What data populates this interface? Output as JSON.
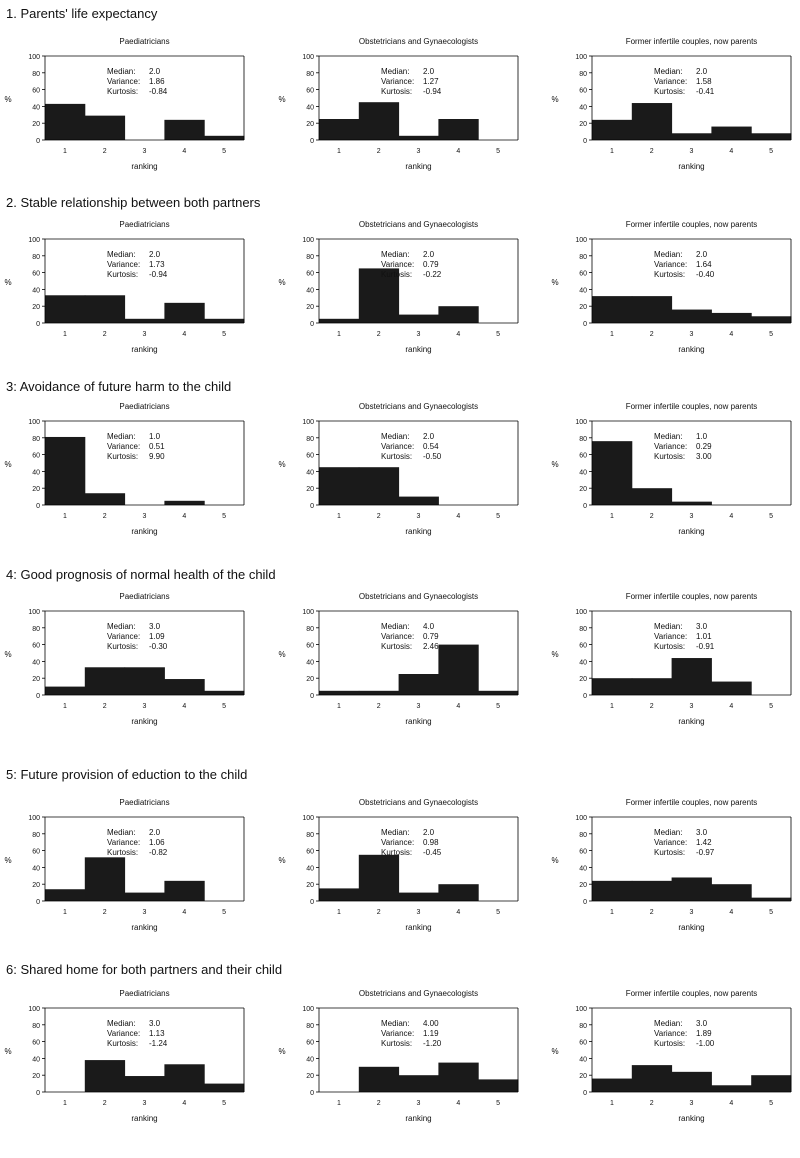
{
  "titles": {
    "paed": "Paediatricians",
    "obs": "Obstetricians and Gynaecologists",
    "former": "Former infertile couples, now parents"
  },
  "stat_labels": {
    "median": "Median:",
    "variance": "Variance:",
    "kurtosis": "Kurtosis:"
  },
  "axis_labels": {
    "y": "%",
    "x": "ranking"
  },
  "colors": {
    "bar": "#1a1a1a",
    "axis": "#000000"
  },
  "sections": [
    {
      "title": "1. Parents' life expectancy"
    },
    {
      "title": "2. Stable relationship between both partners"
    },
    {
      "title": "3: Avoidance of future harm to the child"
    },
    {
      "title": "4: Good prognosis of normal health of the child"
    },
    {
      "title": "5: Future provision of eduction to the child"
    },
    {
      "title": "6: Shared home for both partners and their child"
    }
  ],
  "chart_data": [
    {
      "section": 1,
      "group": "paed",
      "type": "bar",
      "title": "Paediatricians",
      "xlabel": "ranking",
      "ylabel": "%",
      "categories": [
        "1",
        "2",
        "3",
        "4",
        "5"
      ],
      "values": [
        43,
        29,
        0,
        24,
        5
      ],
      "ylim": [
        0,
        100
      ],
      "yticks": [
        0,
        20,
        40,
        60,
        80,
        100
      ],
      "median": "2.0",
      "variance": "1.86",
      "kurtosis": "-0.84"
    },
    {
      "section": 1,
      "group": "obs",
      "type": "bar",
      "title": "Obstetricians and Gynaecologists",
      "xlabel": "ranking",
      "ylabel": "%",
      "categories": [
        "1",
        "2",
        "3",
        "4",
        "5"
      ],
      "values": [
        25,
        45,
        5,
        25,
        0
      ],
      "ylim": [
        0,
        100
      ],
      "yticks": [
        0,
        20,
        40,
        60,
        80,
        100
      ],
      "median": "2.0",
      "variance": "1.27",
      "kurtosis": "-0.94"
    },
    {
      "section": 1,
      "group": "former",
      "type": "bar",
      "title": "Former infertile couples, now parents",
      "xlabel": "ranking",
      "ylabel": "%",
      "categories": [
        "1",
        "2",
        "3",
        "4",
        "5"
      ],
      "values": [
        24,
        44,
        8,
        16,
        8
      ],
      "ylim": [
        0,
        100
      ],
      "yticks": [
        0,
        20,
        40,
        60,
        80,
        100
      ],
      "median": "2.0",
      "variance": "1.58",
      "kurtosis": "-0.41"
    },
    {
      "section": 2,
      "group": "paed",
      "type": "bar",
      "title": "Paediatricians",
      "xlabel": "ranking",
      "ylabel": "%",
      "categories": [
        "1",
        "2",
        "3",
        "4",
        "5"
      ],
      "values": [
        33,
        33,
        5,
        24,
        5
      ],
      "ylim": [
        0,
        100
      ],
      "yticks": [
        0,
        20,
        40,
        60,
        80,
        100
      ],
      "median": "2.0",
      "variance": "1.73",
      "kurtosis": "-0.94"
    },
    {
      "section": 2,
      "group": "obs",
      "type": "bar",
      "title": "Obstetricians and Gynaecologists",
      "xlabel": "ranking",
      "ylabel": "%",
      "categories": [
        "1",
        "2",
        "3",
        "4",
        "5"
      ],
      "values": [
        5,
        65,
        10,
        20,
        0
      ],
      "ylim": [
        0,
        100
      ],
      "yticks": [
        0,
        20,
        40,
        60,
        80,
        100
      ],
      "median": "2.0",
      "variance": "0.79",
      "kurtosis": "-0.22"
    },
    {
      "section": 2,
      "group": "former",
      "type": "bar",
      "title": "Former infertile couples, now parents",
      "xlabel": "ranking",
      "ylabel": "%",
      "categories": [
        "1",
        "2",
        "3",
        "4",
        "5"
      ],
      "values": [
        32,
        32,
        16,
        12,
        8
      ],
      "ylim": [
        0,
        100
      ],
      "yticks": [
        0,
        20,
        40,
        60,
        80,
        100
      ],
      "median": "2.0",
      "variance": "1.64",
      "kurtosis": "-0.40"
    },
    {
      "section": 3,
      "group": "paed",
      "type": "bar",
      "title": "Paediatricians",
      "xlabel": "ranking",
      "ylabel": "%",
      "categories": [
        "1",
        "2",
        "3",
        "4",
        "5"
      ],
      "values": [
        81,
        14,
        0,
        5,
        0
      ],
      "ylim": [
        0,
        100
      ],
      "yticks": [
        0,
        20,
        40,
        60,
        80,
        100
      ],
      "median": "1.0",
      "variance": "0.51",
      "kurtosis": "9.90"
    },
    {
      "section": 3,
      "group": "obs",
      "type": "bar",
      "title": "Obstetricians and Gynaecologists",
      "xlabel": "ranking",
      "ylabel": "%",
      "categories": [
        "1",
        "2",
        "3",
        "4",
        "5"
      ],
      "values": [
        45,
        45,
        10,
        0,
        0
      ],
      "ylim": [
        0,
        100
      ],
      "yticks": [
        0,
        20,
        40,
        60,
        80,
        100
      ],
      "median": "2.0",
      "variance": "0.54",
      "kurtosis": "-0.50"
    },
    {
      "section": 3,
      "group": "former",
      "type": "bar",
      "title": "Former infertile couples, now parents",
      "xlabel": "ranking",
      "ylabel": "%",
      "categories": [
        "1",
        "2",
        "3",
        "4",
        "5"
      ],
      "values": [
        76,
        20,
        4,
        0,
        0
      ],
      "ylim": [
        0,
        100
      ],
      "yticks": [
        0,
        20,
        40,
        60,
        80,
        100
      ],
      "median": "1.0",
      "variance": "0.29",
      "kurtosis": "3.00"
    },
    {
      "section": 4,
      "group": "paed",
      "type": "bar",
      "title": "Paediatricians",
      "xlabel": "ranking",
      "ylabel": "%",
      "categories": [
        "1",
        "2",
        "3",
        "4",
        "5"
      ],
      "values": [
        10,
        33,
        33,
        19,
        5
      ],
      "ylim": [
        0,
        100
      ],
      "yticks": [
        0,
        20,
        40,
        60,
        80,
        100
      ],
      "median": "3.0",
      "variance": "1.09",
      "kurtosis": "-0.30"
    },
    {
      "section": 4,
      "group": "obs",
      "type": "bar",
      "title": "Obstetricians and Gynaecologists",
      "xlabel": "ranking",
      "ylabel": "%",
      "categories": [
        "1",
        "2",
        "3",
        "4",
        "5"
      ],
      "values": [
        5,
        5,
        25,
        60,
        5
      ],
      "ylim": [
        0,
        100
      ],
      "yticks": [
        0,
        20,
        40,
        60,
        80,
        100
      ],
      "median": "4.0",
      "variance": "0.79",
      "kurtosis": "2.46"
    },
    {
      "section": 4,
      "group": "former",
      "type": "bar",
      "title": "Former infertile couples, now parents",
      "xlabel": "ranking",
      "ylabel": "%",
      "categories": [
        "1",
        "2",
        "3",
        "4",
        "5"
      ],
      "values": [
        20,
        20,
        44,
        16,
        0
      ],
      "ylim": [
        0,
        100
      ],
      "yticks": [
        0,
        20,
        40,
        60,
        80,
        100
      ],
      "median": "3.0",
      "variance": "1.01",
      "kurtosis": "-0.91"
    },
    {
      "section": 5,
      "group": "paed",
      "type": "bar",
      "title": "Paediatricians",
      "xlabel": "ranking",
      "ylabel": "%",
      "categories": [
        "1",
        "2",
        "3",
        "4",
        "5"
      ],
      "values": [
        14,
        52,
        10,
        24,
        0
      ],
      "ylim": [
        0,
        100
      ],
      "yticks": [
        0,
        20,
        40,
        60,
        80,
        100
      ],
      "median": "2.0",
      "variance": "1.06",
      "kurtosis": "-0.82"
    },
    {
      "section": 5,
      "group": "obs",
      "type": "bar",
      "title": "Obstetricians and Gynaecologists",
      "xlabel": "ranking",
      "ylabel": "%",
      "categories": [
        "1",
        "2",
        "3",
        "4",
        "5"
      ],
      "values": [
        15,
        55,
        10,
        20,
        0
      ],
      "ylim": [
        0,
        100
      ],
      "yticks": [
        0,
        20,
        40,
        60,
        80,
        100
      ],
      "median": "2.0",
      "variance": "0.98",
      "kurtosis": "-0.45"
    },
    {
      "section": 5,
      "group": "former",
      "type": "bar",
      "title": "Former infertile couples, now parents",
      "xlabel": "ranking",
      "ylabel": "%",
      "categories": [
        "1",
        "2",
        "3",
        "4",
        "5"
      ],
      "values": [
        24,
        24,
        28,
        20,
        4
      ],
      "ylim": [
        0,
        100
      ],
      "yticks": [
        0,
        20,
        40,
        60,
        80,
        100
      ],
      "median": "3.0",
      "variance": "1.42",
      "kurtosis": "-0.97"
    },
    {
      "section": 6,
      "group": "paed",
      "type": "bar",
      "title": "Paediatricians",
      "xlabel": "ranking",
      "ylabel": "%",
      "categories": [
        "1",
        "2",
        "3",
        "4",
        "5"
      ],
      "values": [
        0,
        38,
        19,
        33,
        10
      ],
      "ylim": [
        0,
        100
      ],
      "yticks": [
        0,
        20,
        40,
        60,
        80,
        100
      ],
      "median": "3.0",
      "variance": "1.13",
      "kurtosis": "-1.24"
    },
    {
      "section": 6,
      "group": "obs",
      "type": "bar",
      "title": "Obstetricians and Gynaecologists",
      "xlabel": "ranking",
      "ylabel": "%",
      "categories": [
        "1",
        "2",
        "3",
        "4",
        "5"
      ],
      "values": [
        0,
        30,
        20,
        35,
        15
      ],
      "ylim": [
        0,
        100
      ],
      "yticks": [
        0,
        20,
        40,
        60,
        80,
        100
      ],
      "median": "4.00",
      "variance": "1.19",
      "kurtosis": "-1.20"
    },
    {
      "section": 6,
      "group": "former",
      "type": "bar",
      "title": "Former infertile couples, now parents",
      "xlabel": "ranking",
      "ylabel": "%",
      "categories": [
        "1",
        "2",
        "3",
        "4",
        "5"
      ],
      "values": [
        16,
        32,
        24,
        8,
        20
      ],
      "ylim": [
        0,
        100
      ],
      "yticks": [
        0,
        20,
        40,
        60,
        80,
        100
      ],
      "median": "3.0",
      "variance": "1.89",
      "kurtosis": "-1.00"
    }
  ]
}
